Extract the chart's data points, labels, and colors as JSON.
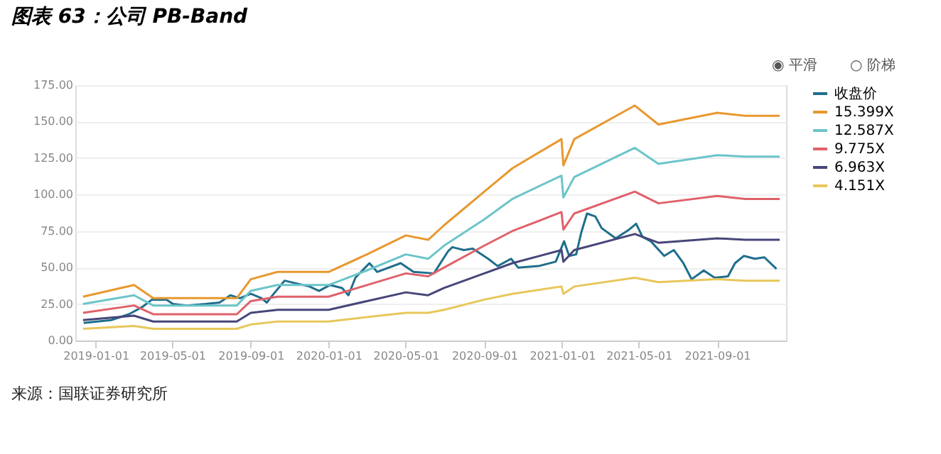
{
  "chart_data": {
    "type": "line",
    "title": "图表 63：公司 PB-Band",
    "x": [
      "2018-12-12",
      "2019-03-02",
      "2019-04-01",
      "2019-08-10",
      "2019-09-01",
      "2019-10-13",
      "2020-01-01",
      "2020-03-01",
      "2020-05-01",
      "2020-06-05",
      "2020-06-30",
      "2020-09-01",
      "2020-10-15",
      "2020-12-31",
      "2021-01-03",
      "2021-01-20",
      "2021-04-25",
      "2021-06-01",
      "2021-09-01",
      "2021-10-15",
      "2021-12-08"
    ],
    "series": [
      {
        "name": "收盘价",
        "color": "#1f6e8c",
        "x": [
          "2018-12-13",
          "2019-01-25",
          "2019-02-22",
          "2019-03-15",
          "2019-03-30",
          "2019-04-22",
          "2019-05-02",
          "2019-05-24",
          "2019-06-22",
          "2019-07-14",
          "2019-07-31",
          "2019-08-15",
          "2019-09-01",
          "2019-09-18",
          "2019-09-26",
          "2019-10-07",
          "2019-10-24",
          "2019-12-02",
          "2019-12-17",
          "2020-01-03",
          "2020-01-22",
          "2020-02-01",
          "2020-02-12",
          "2020-03-05",
          "2020-03-17",
          "2020-04-23",
          "2020-05-13",
          "2020-06-14",
          "2020-07-06",
          "2020-07-13",
          "2020-07-31",
          "2020-08-14",
          "2020-09-07",
          "2020-09-22",
          "2020-10-13",
          "2020-10-24",
          "2020-11-25",
          "2020-12-22",
          "2021-01-04",
          "2021-01-12",
          "2021-01-23",
          "2021-01-31",
          "2021-02-09",
          "2021-02-22",
          "2021-03-04",
          "2021-03-26",
          "2021-04-16",
          "2021-04-27",
          "2021-05-07",
          "2021-05-20",
          "2021-06-10",
          "2021-06-25",
          "2021-07-10",
          "2021-07-23",
          "2021-08-11",
          "2021-08-28",
          "2021-09-18",
          "2021-09-29",
          "2021-10-13",
          "2021-10-30",
          "2021-11-14",
          "2021-12-03"
        ],
        "values": [
          12,
          14,
          18,
          23,
          28,
          28,
          25,
          24,
          25,
          26,
          31,
          29,
          32,
          29,
          26,
          32,
          41,
          37,
          34,
          38,
          36,
          31,
          43,
          53,
          47,
          53,
          47,
          46,
          61,
          64,
          62,
          63,
          56,
          51,
          56,
          50,
          51,
          54,
          68,
          58,
          59,
          74,
          87,
          85,
          77,
          70,
          76,
          80,
          71,
          68,
          58,
          62,
          53,
          42,
          48,
          43,
          44,
          53,
          58,
          56,
          57,
          49
        ]
      },
      {
        "name": "15.399X",
        "color": "#e8982e",
        "values": [
          30,
          38,
          29,
          29,
          42,
          47,
          47,
          59,
          72,
          69,
          79,
          102,
          118,
          138,
          120,
          138,
          161,
          148,
          156,
          154,
          154
        ]
      },
      {
        "name": "12.587X",
        "color": "#6cc5c9",
        "values": [
          25,
          31,
          24,
          24,
          34,
          38,
          38,
          48,
          59,
          56,
          65,
          83,
          97,
          113,
          98,
          112,
          132,
          121,
          127,
          126,
          126
        ]
      },
      {
        "name": "9.775X",
        "color": "#e0616a",
        "values": [
          19,
          24,
          18,
          18,
          27,
          30,
          30,
          38,
          46,
          44,
          50,
          65,
          75,
          88,
          76,
          87,
          102,
          94,
          99,
          97,
          97
        ]
      },
      {
        "name": "6.963X",
        "color": "#46467a",
        "values": [
          14,
          17,
          13,
          13,
          19,
          21,
          21,
          27,
          33,
          31,
          36,
          46,
          53,
          62,
          54,
          62,
          73,
          67,
          70,
          69,
          69
        ]
      },
      {
        "name": "4.151X",
        "color": "#e8c75a",
        "values": [
          8,
          10,
          8,
          8,
          11,
          13,
          13,
          16,
          19,
          19,
          21,
          28,
          32,
          37,
          32,
          37,
          43,
          40,
          42,
          41,
          41
        ]
      }
    ],
    "xlim": [
      "2018-11-30",
      "2021-12-18"
    ],
    "xticks": [
      "2019-01-01",
      "2019-05-01",
      "2019-09-01",
      "2020-01-01",
      "2020-05-01",
      "2020-09-01",
      "2021-01-01",
      "2021-05-01",
      "2021-09-01"
    ],
    "ylim": [
      0,
      175
    ],
    "yticks": [
      {
        "value": 0,
        "label": "0.00"
      },
      {
        "value": 25,
        "label": "25.00"
      },
      {
        "value": 50,
        "label": "50.00"
      },
      {
        "value": 75,
        "label": "75.00"
      },
      {
        "value": 100,
        "label": "100.00"
      },
      {
        "value": 125,
        "label": "125.00"
      },
      {
        "value": 150,
        "label": "150.00"
      },
      {
        "value": 175,
        "label": "175.00"
      }
    ],
    "grid": "y",
    "legend": "right",
    "marker": "none",
    "line_style": "solid",
    "annotations": [
      "◉ 平滑",
      "○ 阶梯",
      "来源：国联证券研究所"
    ]
  }
}
